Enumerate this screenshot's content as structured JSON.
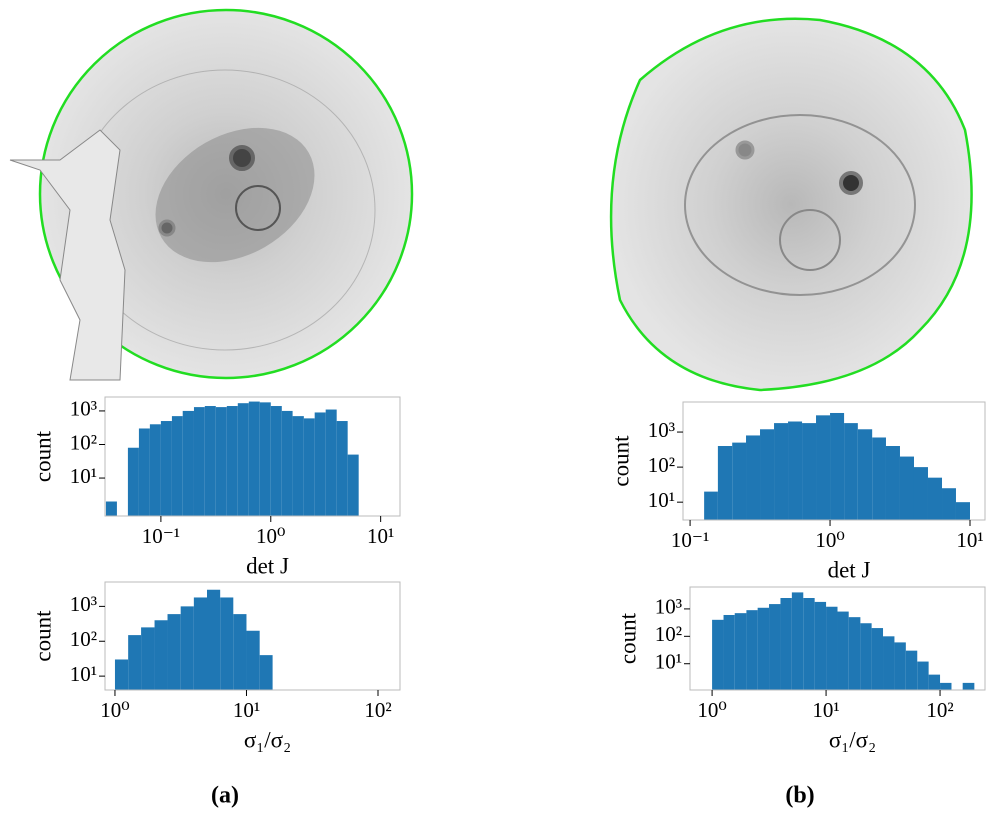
{
  "chart_data": [
    {
      "type": "histogram",
      "xlabel": "det J",
      "ylabel": "count",
      "xscale": "log",
      "yscale": "log",
      "color": "#1f77b4",
      "bins": [
        0.0316,
        0.0398,
        0.0501,
        0.0631,
        0.0794,
        0.1,
        0.126,
        0.158,
        0.2,
        0.251,
        0.316,
        0.398,
        0.501,
        0.631,
        0.794,
        1,
        1.26,
        1.58,
        2,
        2.51,
        3.16,
        3.98,
        5.01,
        6.31
      ],
      "values": [
        2,
        0,
        80,
        300,
        400,
        500,
        700,
        1000,
        1300,
        1400,
        1300,
        1400,
        1700,
        1900,
        1800,
        1400,
        1000,
        700,
        600,
        900,
        1100,
        500,
        50
      ],
      "xlim": [
        0.031,
        15
      ],
      "ylim": [
        0.74,
        2600
      ],
      "xticks": [
        {
          "value": 0.1,
          "label": "10⁻¹"
        },
        {
          "value": 1,
          "label": "10⁰"
        },
        {
          "value": 10,
          "label": "10¹"
        }
      ],
      "yticks": [
        {
          "value": 10,
          "label": "10¹"
        },
        {
          "value": 100,
          "label": "10²"
        },
        {
          "value": 1000,
          "label": "10³"
        }
      ]
    },
    {
      "type": "histogram",
      "xlabel": "σ₁/σ₂",
      "ylabel": "count",
      "xscale": "log",
      "yscale": "log",
      "color": "#1f77b4",
      "bins": [
        1,
        1.26,
        1.58,
        2,
        2.51,
        3.16,
        3.98,
        5.01,
        6.31,
        7.94,
        10,
        12.6,
        15.8
      ],
      "values": [
        30,
        150,
        250,
        400,
        600,
        1000,
        1800,
        3000,
        1800,
        600,
        200,
        40
      ],
      "xlim": [
        0.84,
        147
      ],
      "ylim": [
        4,
        5000
      ],
      "xticks": [
        {
          "value": 1,
          "label": "10⁰"
        },
        {
          "value": 10,
          "label": "10¹"
        },
        {
          "value": 100,
          "label": "10²"
        }
      ],
      "yticks": [
        {
          "value": 10,
          "label": "10¹"
        },
        {
          "value": 100,
          "label": "10²"
        },
        {
          "value": 1000,
          "label": "10³"
        }
      ]
    },
    {
      "type": "histogram",
      "xlabel": "det J",
      "ylabel": "count",
      "xscale": "log",
      "yscale": "log",
      "color": "#1f77b4",
      "bins": [
        0.126,
        0.158,
        0.2,
        0.251,
        0.316,
        0.398,
        0.501,
        0.631,
        0.794,
        1,
        1.26,
        1.58,
        2,
        2.51,
        3.16,
        3.98,
        5.01,
        6.31,
        7.94,
        10
      ],
      "values": [
        20,
        400,
        500,
        800,
        1200,
        1800,
        2000,
        1800,
        3000,
        3500,
        1800,
        1200,
        700,
        400,
        200,
        100,
        50,
        25,
        10
      ],
      "xlim": [
        0.089,
        12.8
      ],
      "ylim": [
        3.1,
        7200
      ],
      "xticks": [
        {
          "value": 0.1,
          "label": "10⁻¹"
        },
        {
          "value": 1,
          "label": "10⁰"
        },
        {
          "value": 10,
          "label": "10¹"
        }
      ],
      "yticks": [
        {
          "value": 10,
          "label": "10¹"
        },
        {
          "value": 100,
          "label": "10²"
        },
        {
          "value": 1000,
          "label": "10³"
        }
      ]
    },
    {
      "type": "histogram",
      "xlabel": "σ₁/σ₂",
      "ylabel": "count",
      "xscale": "log",
      "yscale": "log",
      "color": "#1f77b4",
      "bins": [
        1,
        1.26,
        1.58,
        2,
        2.51,
        3.16,
        3.98,
        5.01,
        6.31,
        7.94,
        10,
        12.6,
        15.8,
        20,
        25.1,
        31.6,
        39.8,
        50.1,
        63.1,
        79.4,
        100,
        126,
        158,
        200
      ],
      "values": [
        400,
        600,
        700,
        900,
        1100,
        1500,
        2500,
        4000,
        2500,
        1800,
        1200,
        800,
        500,
        300,
        200,
        100,
        60,
        30,
        12,
        4,
        2,
        0,
        2
      ],
      "xlim": [
        0.64,
        248
      ],
      "ylim": [
        1.1,
        6300
      ],
      "xticks": [
        {
          "value": 1,
          "label": "10⁰"
        },
        {
          "value": 10,
          "label": "10¹"
        },
        {
          "value": 100,
          "label": "10²"
        }
      ],
      "yticks": [
        {
          "value": 10,
          "label": "10¹"
        },
        {
          "value": 100,
          "label": "10²"
        },
        {
          "value": 1000,
          "label": "10³"
        }
      ]
    }
  ],
  "captions": [
    "(a)",
    "(b)"
  ]
}
